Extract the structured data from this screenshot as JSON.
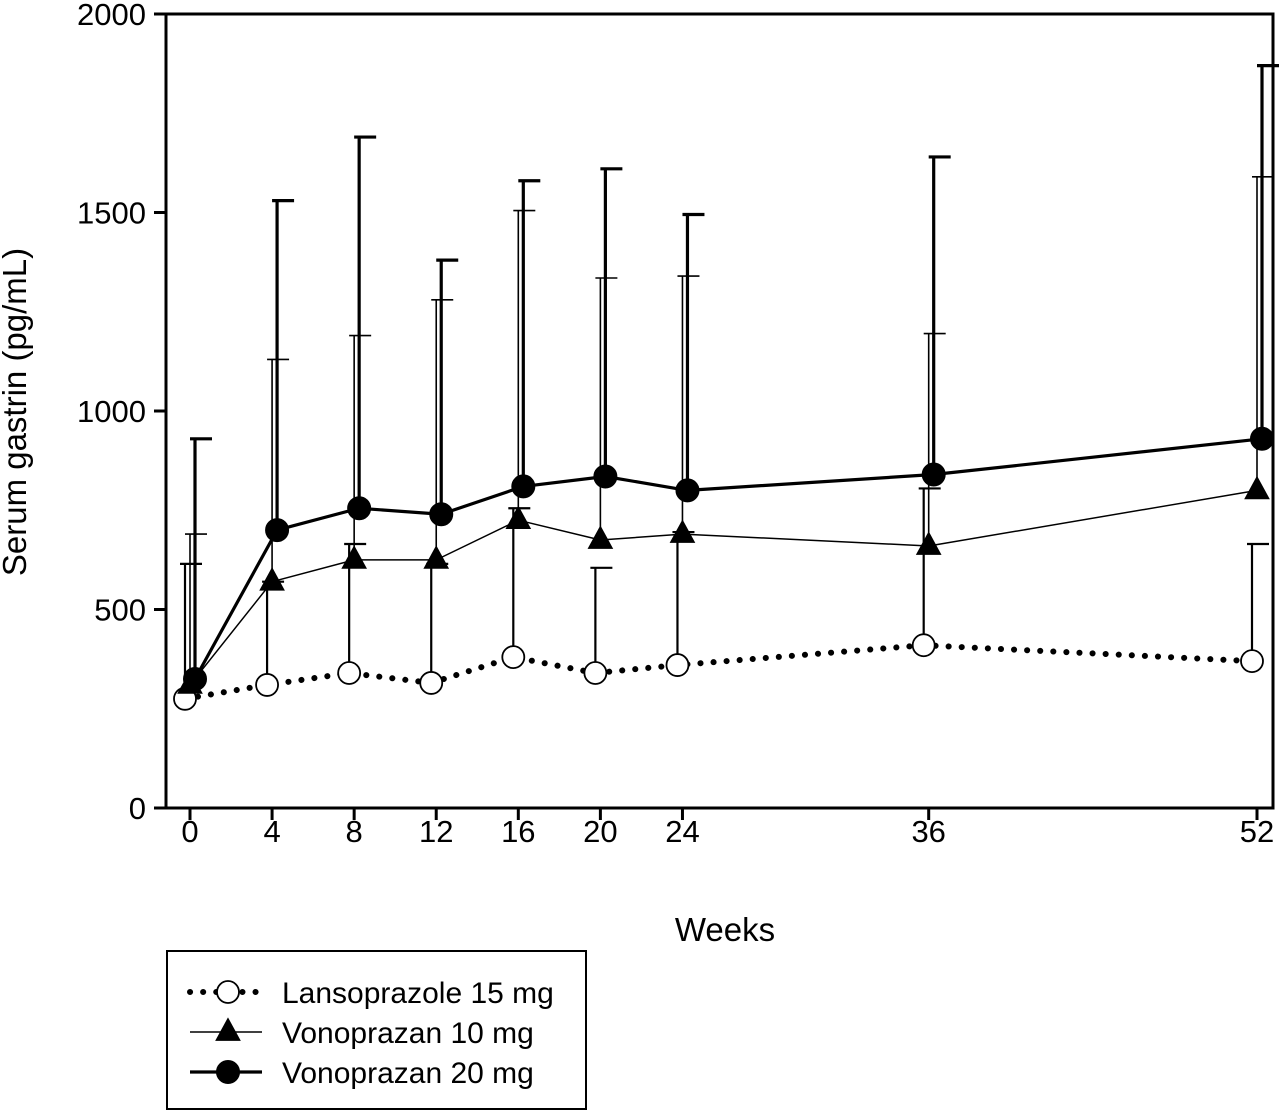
{
  "chart_data": {
    "type": "line",
    "xlabel": "Weeks",
    "ylabel": "Serum gastrin (pg/mL)",
    "ylim": [
      0,
      2000
    ],
    "yticks": [
      0,
      500,
      1000,
      1500,
      2000
    ],
    "xticks": [
      0,
      4,
      8,
      12,
      16,
      20,
      24,
      36,
      52
    ],
    "grid": false,
    "legend_position": "bottom-left, below plot",
    "series": [
      {
        "name": "Lansoprazole 15 mg",
        "marker": "open-circle",
        "line_style": "dotted",
        "x": [
          0,
          4,
          8,
          12,
          16,
          20,
          24,
          36,
          52
        ],
        "y": [
          275,
          310,
          340,
          315,
          380,
          340,
          360,
          410,
          370
        ],
        "error_upper": [
          615,
          570,
          665,
          615,
          755,
          605,
          695,
          805,
          665
        ]
      },
      {
        "name": "Vonoprazan 10 mg",
        "marker": "filled-triangle",
        "line_style": "thin-solid",
        "x": [
          0,
          4,
          8,
          12,
          16,
          20,
          24,
          36,
          52
        ],
        "y": [
          310,
          570,
          625,
          625,
          725,
          675,
          690,
          660,
          800
        ],
        "error_upper": [
          690,
          1130,
          1190,
          1280,
          1505,
          1335,
          1340,
          1195,
          1590
        ]
      },
      {
        "name": "Vonoprazan 20 mg",
        "marker": "filled-circle",
        "line_style": "thick-solid",
        "x": [
          0,
          4,
          8,
          12,
          16,
          20,
          24,
          36,
          52
        ],
        "y": [
          325,
          700,
          755,
          740,
          810,
          835,
          800,
          840,
          930
        ],
        "error_upper": [
          930,
          1530,
          1690,
          1380,
          1580,
          1610,
          1495,
          1640,
          1870
        ]
      }
    ]
  }
}
